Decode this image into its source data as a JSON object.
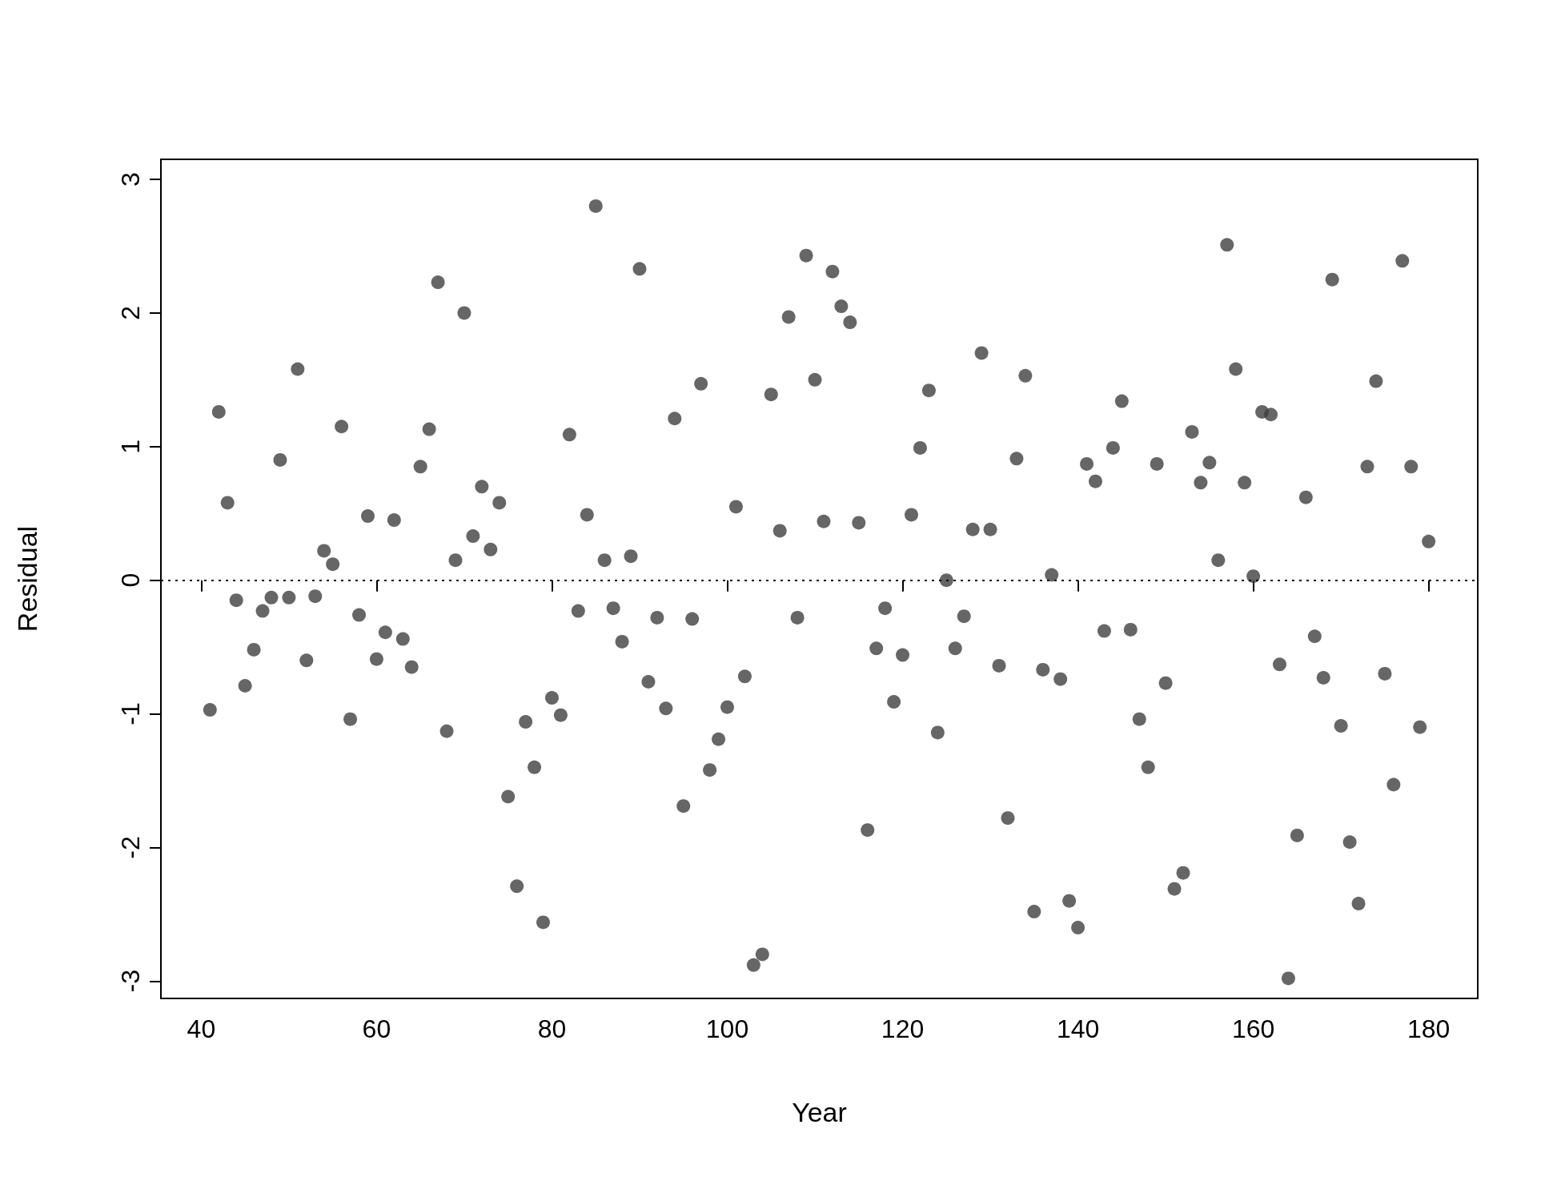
{
  "chart_data": {
    "type": "scatter",
    "xlabel": "Year",
    "ylabel": "Residual",
    "x": [
      41,
      42,
      43,
      44,
      45,
      46,
      47,
      48,
      49,
      50,
      51,
      52,
      53,
      54,
      55,
      56,
      57,
      58,
      59,
      60,
      61,
      62,
      63,
      64,
      65,
      66,
      67,
      68,
      69,
      70,
      71,
      72,
      73,
      74,
      75,
      76,
      77,
      78,
      79,
      80,
      81,
      82,
      83,
      84,
      85,
      86,
      87,
      88,
      89,
      90,
      91,
      92,
      93,
      94,
      95,
      96,
      97,
      98,
      99,
      100,
      101,
      102,
      103,
      104,
      105,
      106,
      107,
      108,
      109,
      110,
      111,
      112,
      113,
      114,
      115,
      116,
      117,
      118,
      119,
      120,
      121,
      122,
      123,
      124,
      125,
      126,
      127,
      128,
      129,
      130,
      131,
      132,
      133,
      134,
      135,
      136,
      137,
      138,
      139,
      140,
      141,
      142,
      143,
      144,
      145,
      146,
      147,
      148,
      149,
      150,
      151,
      152,
      153,
      154,
      155,
      156,
      157,
      158,
      159,
      160,
      161,
      162,
      163,
      164,
      165,
      166,
      167,
      168,
      169,
      170,
      171,
      172,
      173,
      174,
      175,
      176,
      177,
      178,
      179,
      180
    ],
    "series": [
      {
        "color": "#404040",
        "values": [
          -0.97,
          1.26,
          0.58,
          -0.15,
          -0.79,
          -0.52,
          -0.23,
          -0.13,
          0.9,
          -0.13,
          1.58,
          -0.6,
          -0.12,
          0.22,
          0.12,
          1.15,
          -1.04,
          -0.26,
          0.48,
          -0.59,
          -0.39,
          0.45,
          -0.44,
          -0.65,
          0.85,
          1.13,
          2.23,
          -1.13,
          0.15,
          2.0,
          0.33,
          0.7,
          0.23,
          0.58,
          -1.62,
          -2.29,
          -1.06,
          -1.4,
          -2.56,
          -0.88,
          -1.01,
          1.09,
          -0.23,
          0.49,
          2.8,
          0.15,
          -0.21,
          -0.46,
          0.18,
          2.33,
          -0.76,
          -0.28,
          -0.96,
          1.21,
          -1.69,
          -0.29,
          1.47,
          -1.42,
          -1.19,
          -0.95,
          0.55,
          -0.72,
          -2.88,
          -2.8,
          1.39,
          0.37,
          1.97,
          -0.28,
          2.43,
          1.5,
          0.44,
          2.31,
          2.05,
          1.93,
          0.43,
          -1.87,
          -0.51,
          -0.21,
          -0.91,
          -0.56,
          0.49,
          0.99,
          1.42,
          -1.14,
          0.0,
          -0.51,
          -0.27,
          0.38,
          1.7,
          0.38,
          -0.64,
          -1.78,
          0.91,
          1.53,
          -2.48,
          -0.67,
          0.04,
          -0.74,
          -2.4,
          -2.6,
          0.87,
          0.74,
          -0.38,
          0.99,
          1.34,
          -0.37,
          -1.04,
          -1.4,
          0.87,
          -0.77,
          -2.31,
          -2.19,
          1.11,
          0.73,
          0.88,
          0.15,
          2.51,
          1.58,
          0.73,
          0.03,
          1.26,
          1.24,
          -0.63,
          -2.98,
          -1.91,
          0.62,
          -0.42,
          -0.73,
          2.25,
          -1.09,
          -1.96,
          -2.42,
          0.85,
          1.49,
          -0.7,
          -1.53,
          2.39,
          0.85,
          -1.1,
          0.29
        ]
      }
    ],
    "xlim": [
      35.4,
      185.6
    ],
    "xticks": [
      40,
      60,
      80,
      100,
      120,
      140,
      160,
      180
    ],
    "ylim": [
      -3.13,
      3.15
    ],
    "yticks": [
      -3,
      -2,
      -1,
      0,
      1,
      2,
      3
    ],
    "ref_lines": [
      {
        "axis": "y",
        "value": 0,
        "line_style": "dotted",
        "color": "#000000"
      }
    ],
    "marker": "circle",
    "grid": false
  }
}
